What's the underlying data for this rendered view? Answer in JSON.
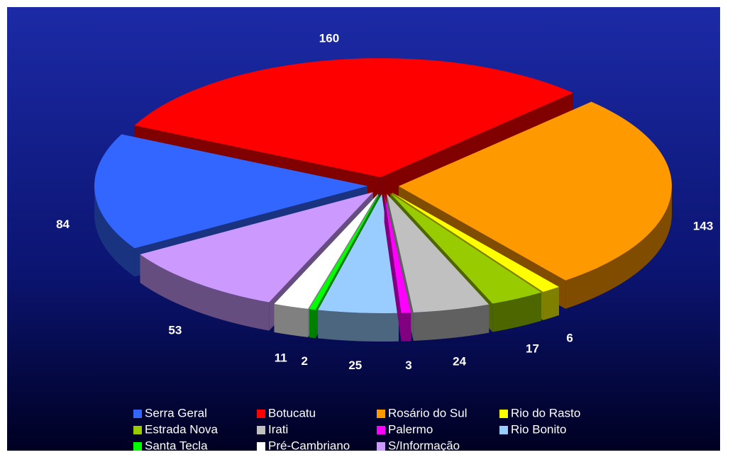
{
  "chart_data": {
    "type": "pie",
    "categories": [
      "Serra Geral",
      "Botucatu",
      "Rosário do Sul",
      "Rio do Rasto",
      "Estrada Nova",
      "Irati",
      "Palermo",
      "Rio Bonito",
      "Santa Tecla",
      "Pré-Cambriano",
      "S/Informação"
    ],
    "values": [
      84,
      160,
      143,
      6,
      17,
      24,
      3,
      25,
      2,
      11,
      53
    ],
    "colors": [
      "#3366ff",
      "#ff0000",
      "#ff9900",
      "#ffff00",
      "#99cc00",
      "#c0c0c0",
      "#ff00ff",
      "#99ccff",
      "#00ff00",
      "#ffffff",
      "#cc99ff"
    ],
    "legend": "bottom"
  }
}
